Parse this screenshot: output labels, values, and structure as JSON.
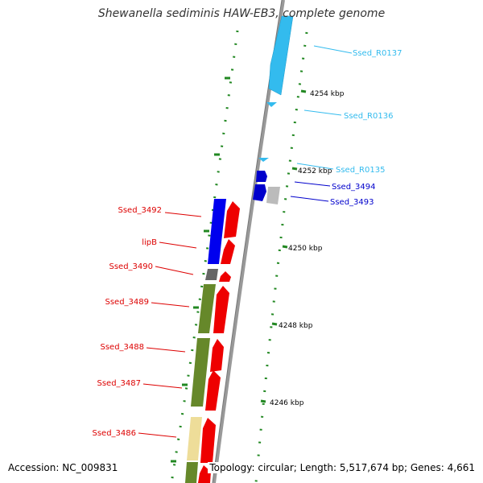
{
  "title": "Shewanella sediminis HAW-EB3, complete genome",
  "footer": {
    "accession": "Accession: NC_009831",
    "summary": "Topology: circular; Length: 5,517,674 bp; Genes: 4,661"
  },
  "colors": {
    "rna": "#33bbee",
    "plus_strand": "#0000cc",
    "minus_strand": "#dd0000",
    "scale": "#228822",
    "backbone": "#888888"
  },
  "ticks": [
    "4254 kbp",
    "4252 kbp",
    "4250 kbp",
    "4248 kbp",
    "4246 kbp"
  ],
  "labels": {
    "Ssed_R0137": "Ssed_R0137",
    "Ssed_R0136": "Ssed_R0136",
    "Ssed_R0135": "Ssed_R0135",
    "Ssed_3494": "Ssed_3494",
    "Ssed_3493": "Ssed_3493",
    "Ssed_3492": "Ssed_3492",
    "lipB": "lipB",
    "Ssed_3490": "Ssed_3490",
    "Ssed_3489": "Ssed_3489",
    "Ssed_3488": "Ssed_3488",
    "Ssed_3487": "Ssed_3487",
    "Ssed_3486": "Ssed_3486"
  }
}
